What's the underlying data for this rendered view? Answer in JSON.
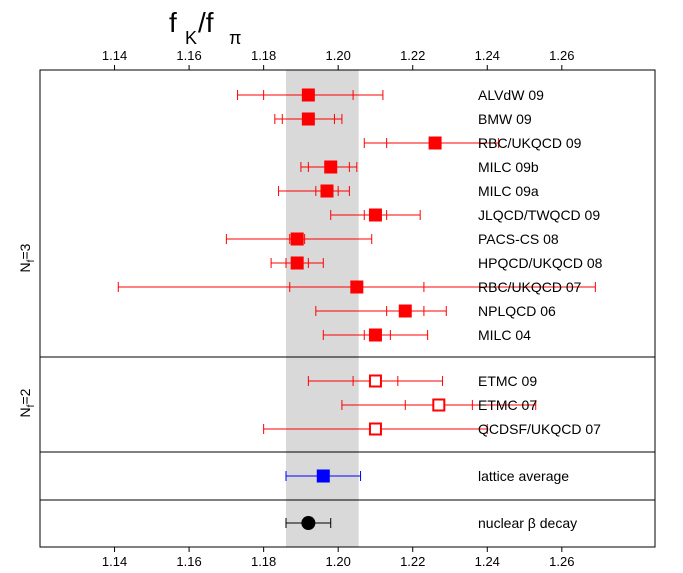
{
  "chart_data": {
    "type": "scatter",
    "title": {
      "main": "f",
      "sub1": "K",
      "mid": "/f",
      "sub2": "π"
    },
    "xlim": [
      1.12,
      1.285
    ],
    "ticks": [
      1.14,
      1.16,
      1.18,
      1.2,
      1.22,
      1.24,
      1.26
    ],
    "tick_labels": [
      "1.14",
      "1.16",
      "1.18",
      "1.20",
      "1.22",
      "1.24",
      "1.26"
    ],
    "band": {
      "min": 1.186,
      "max": 1.2055,
      "color": "#d9d9d9"
    },
    "group_labels": [
      {
        "prefix": "N",
        "sub": "f",
        "suffix": "=3"
      },
      {
        "prefix": "N",
        "sub": "f",
        "suffix": "=2"
      }
    ],
    "colors": {
      "nf3": "#ff0000",
      "nf2": "#ff0000",
      "average": "#0000ff",
      "experiment": "#000000"
    },
    "entries": [
      {
        "label": "ALVdW 09",
        "group": "nf3",
        "value": 1.192,
        "stat": [
          1.18,
          1.204
        ],
        "total": [
          1.173,
          1.212
        ],
        "marker": "square-filled"
      },
      {
        "label": "BMW 09",
        "group": "nf3",
        "value": 1.192,
        "stat": [
          1.185,
          1.199
        ],
        "total": [
          1.183,
          1.201
        ],
        "marker": "square-filled"
      },
      {
        "label": "RBC/UKQCD 09",
        "group": "nf3",
        "value": 1.226,
        "stat": [
          1.213,
          1.238
        ],
        "total": [
          1.207,
          1.243
        ],
        "marker": "square-filled"
      },
      {
        "label": "MILC 09b",
        "group": "nf3",
        "value": 1.198,
        "stat": [
          1.192,
          1.203
        ],
        "total": [
          1.19,
          1.205
        ],
        "marker": "square-filled"
      },
      {
        "label": "MILC 09a",
        "group": "nf3",
        "value": 1.197,
        "stat": [
          1.194,
          1.2
        ],
        "total": [
          1.184,
          1.203
        ],
        "marker": "square-filled"
      },
      {
        "label": "JLQCD/TWQCD 09",
        "group": "nf3",
        "value": 1.21,
        "stat": [
          1.207,
          1.213
        ],
        "total": [
          1.198,
          1.222
        ],
        "marker": "square-filled"
      },
      {
        "label": "PACS-CS 08",
        "group": "nf3",
        "value": 1.189,
        "stat": [
          1.187,
          1.191
        ],
        "total": [
          1.17,
          1.209
        ],
        "marker": "square-filled"
      },
      {
        "label": "HPQCD/UKQCD 08",
        "group": "nf3",
        "value": 1.189,
        "stat": [
          1.186,
          1.192
        ],
        "total": [
          1.182,
          1.196
        ],
        "marker": "square-filled"
      },
      {
        "label": "RBC/UKQCD 07",
        "group": "nf3",
        "value": 1.205,
        "stat": [
          1.187,
          1.223
        ],
        "total": [
          1.141,
          1.269
        ],
        "marker": "square-filled"
      },
      {
        "label": "NPLQCD 06",
        "group": "nf3",
        "value": 1.218,
        "stat": [
          1.213,
          1.223
        ],
        "total": [
          1.194,
          1.229
        ],
        "marker": "square-filled"
      },
      {
        "label": "MILC 04",
        "group": "nf3",
        "value": 1.21,
        "stat": [
          1.207,
          1.214
        ],
        "total": [
          1.196,
          1.224
        ],
        "marker": "square-filled"
      },
      {
        "label": "ETMC 09",
        "group": "nf2",
        "value": 1.21,
        "stat": [
          1.204,
          1.216
        ],
        "total": [
          1.192,
          1.228
        ],
        "marker": "square-open"
      },
      {
        "label": "ETMC 07",
        "group": "nf2",
        "value": 1.227,
        "stat": [
          1.218,
          1.236
        ],
        "total": [
          1.201,
          1.253
        ],
        "marker": "square-open"
      },
      {
        "label": "QCDSF/UKQCD 07",
        "group": "nf2",
        "value": 1.21,
        "stat": [
          1.21,
          1.21
        ],
        "total": [
          1.18,
          1.24
        ],
        "marker": "square-open"
      },
      {
        "label": "lattice average",
        "group": "average",
        "value": 1.196,
        "stat": [
          1.196,
          1.196
        ],
        "total": [
          1.186,
          1.206
        ],
        "marker": "square-filled"
      },
      {
        "label": "nuclear β decay",
        "group": "experiment",
        "value": 1.192,
        "stat": [
          1.192,
          1.192
        ],
        "total": [
          1.186,
          1.198
        ],
        "marker": "circle-filled"
      }
    ]
  }
}
